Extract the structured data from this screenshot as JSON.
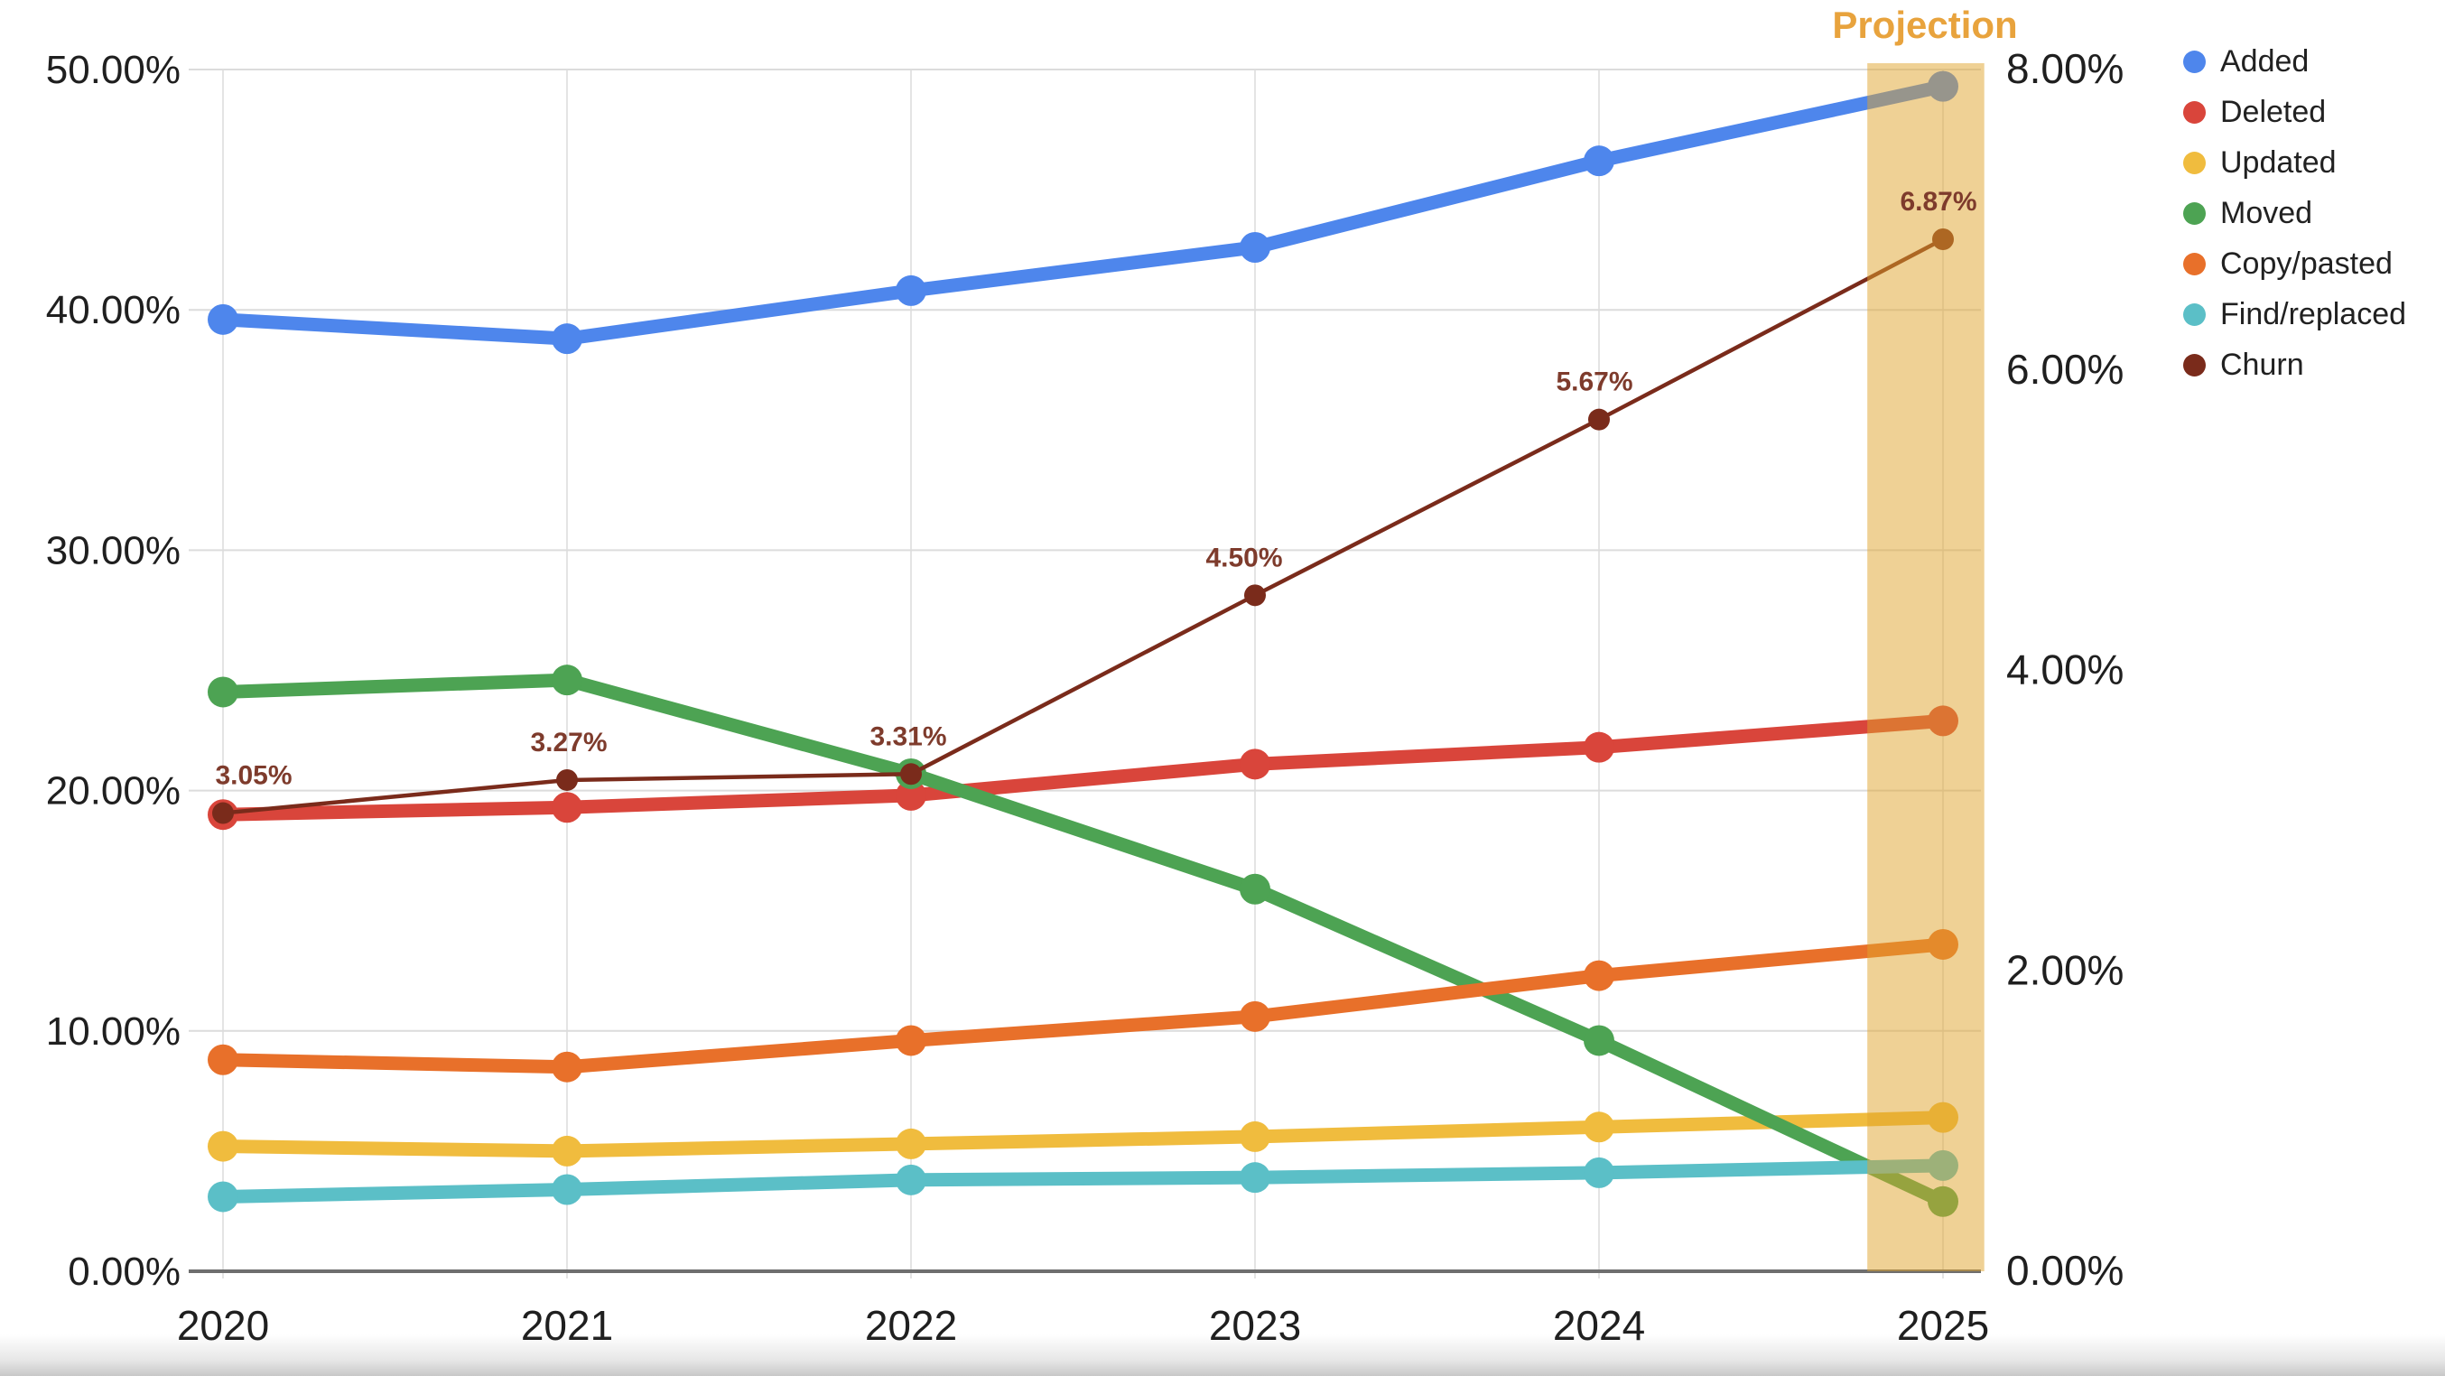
{
  "page": {
    "background": "#ffffff"
  },
  "annotations": {
    "projection_label": "Projection",
    "projection_color": "#E8A33D"
  },
  "legend": {
    "position": "right",
    "items": [
      {
        "label": "Added",
        "color": "#4E86EC"
      },
      {
        "label": "Deleted",
        "color": "#D9453B"
      },
      {
        "label": "Updated",
        "color": "#F0BC3E"
      },
      {
        "label": "Moved",
        "color": "#4DA353"
      },
      {
        "label": "Copy/pasted",
        "color": "#E8702A"
      },
      {
        "label": "Find/replaced",
        "color": "#5BBFC7"
      },
      {
        "label": "Churn",
        "color": "#7A2B1B"
      }
    ]
  },
  "axes": {
    "x": {
      "ticks": [
        "2020",
        "2021",
        "2022",
        "2023",
        "2024",
        "2025"
      ]
    },
    "y_left": {
      "ticks": [
        "50.00%",
        "40.00%",
        "30.00%",
        "20.00%",
        "10.00%",
        "0.00%"
      ],
      "values": [
        50,
        40,
        30,
        20,
        10,
        0
      ],
      "min": 0,
      "max": 50
    },
    "y_right": {
      "ticks": [
        "8.00%",
        "6.00%",
        "4.00%",
        "2.00%",
        "0.00%"
      ],
      "values": [
        8,
        6,
        4,
        2,
        0
      ],
      "min": 0,
      "max": 8
    }
  },
  "chart_data": {
    "type": "line",
    "x": [
      2020,
      2021,
      2022,
      2023,
      2024,
      2025
    ],
    "grid": true,
    "legend_position": "right",
    "ylim_left": [
      0,
      50
    ],
    "ylim_right": [
      0,
      8
    ],
    "series": [
      {
        "name": "Added",
        "axis": "left",
        "color": "#4E86EC",
        "style": "thick",
        "values": [
          39.6,
          38.8,
          40.8,
          42.6,
          46.2,
          49.3
        ]
      },
      {
        "name": "Deleted",
        "axis": "left",
        "color": "#D9453B",
        "style": "thick",
        "values": [
          19.0,
          19.3,
          19.8,
          21.1,
          21.8,
          22.9
        ]
      },
      {
        "name": "Updated",
        "axis": "left",
        "color": "#F0BC3E",
        "style": "thick",
        "values": [
          5.2,
          5.0,
          5.3,
          5.6,
          6.0,
          6.4
        ]
      },
      {
        "name": "Moved",
        "axis": "left",
        "color": "#4DA353",
        "style": "thick",
        "values": [
          24.1,
          24.6,
          20.7,
          15.9,
          9.6,
          2.9
        ]
      },
      {
        "name": "Copy/pasted",
        "axis": "left",
        "color": "#E8702A",
        "style": "thick",
        "values": [
          8.8,
          8.5,
          9.6,
          10.6,
          12.3,
          13.6
        ]
      },
      {
        "name": "Find/replaced",
        "axis": "left",
        "color": "#5BBFC7",
        "style": "thick",
        "values": [
          3.1,
          3.4,
          3.8,
          3.9,
          4.1,
          4.4
        ]
      },
      {
        "name": "Churn",
        "axis": "right",
        "color": "#7A2B1B",
        "style": "thin",
        "values": [
          3.05,
          3.27,
          3.31,
          4.5,
          5.67,
          6.87
        ],
        "data_labels": [
          "3.05%",
          "3.27%",
          "3.31%",
          "4.50%",
          "5.67%",
          "6.87%"
        ],
        "data_label_color": "#7E3B2C"
      }
    ],
    "projection_band": {
      "x_start_year": 2024.78,
      "x_end_year": 2025.12,
      "color": "#DFA32B",
      "opacity": 0.5
    }
  }
}
